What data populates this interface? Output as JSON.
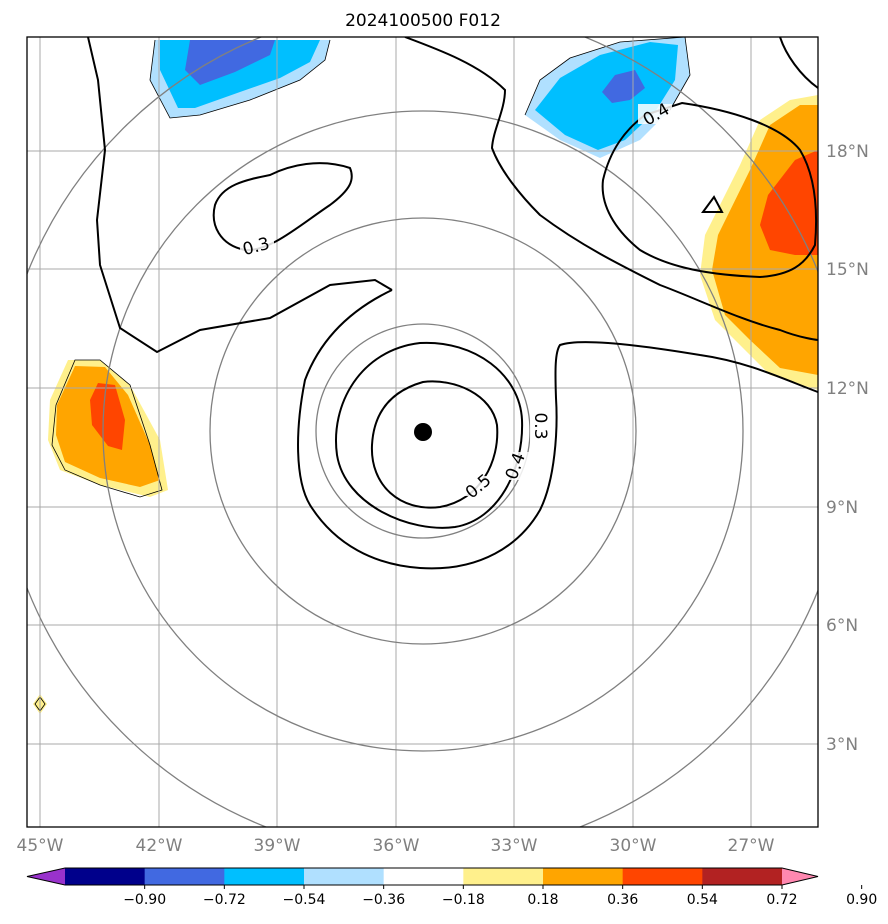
{
  "title": "2024100500 F012",
  "map": {
    "lon_labels": [
      "45°W",
      "42°W",
      "39°W",
      "36°W",
      "33°W",
      "30°W",
      "27°W"
    ],
    "lat_labels": [
      "18°N",
      "15°N",
      "12°N",
      "9°N",
      "6°N",
      "3°N"
    ],
    "contour_labels": [
      "0.3",
      "0.4",
      "0.5",
      "0.4",
      "0.3"
    ],
    "center_marker": "storm-center",
    "colors": {
      "contour": "#000000",
      "grid": "#a9a9a9",
      "range_rings": "#808080"
    }
  },
  "colorbar": {
    "tick_labels": [
      "−0.90",
      "−0.72",
      "−0.54",
      "−0.36",
      "−0.18",
      "0.18",
      "0.36",
      "0.54",
      "0.72",
      "0.90"
    ],
    "colors": [
      "#9932cc",
      "#00008b",
      "#4169e1",
      "#00bfff",
      "#b0e0ff",
      "#ffffff",
      "#fff08c",
      "#ffa500",
      "#ff4500",
      "#b22222",
      "#ff88b0"
    ]
  }
}
